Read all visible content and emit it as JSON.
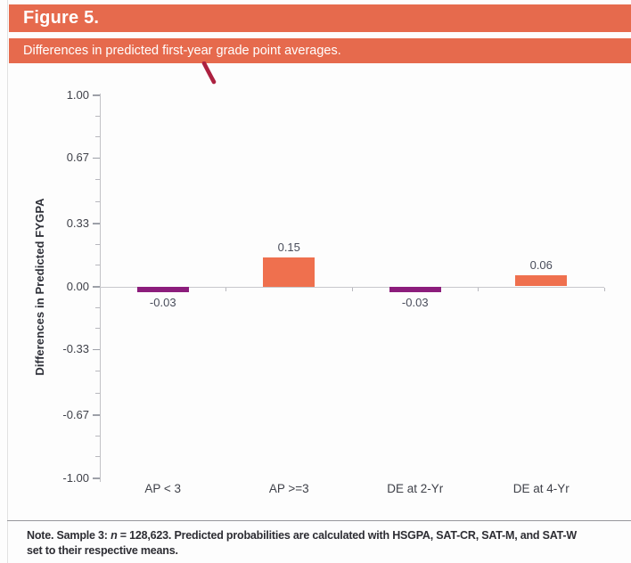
{
  "header": {
    "figure_label": "Figure 5.",
    "subtitle": "Differences in predicted first-year grade point averages."
  },
  "chart_data": {
    "type": "bar",
    "title": "Differences in predicted first-year grade point averages.",
    "categories": [
      "AP < 3",
      "AP >=3",
      "DE at 2-Yr",
      "DE at 4-Yr"
    ],
    "values": [
      -0.03,
      0.15,
      -0.03,
      0.06
    ],
    "value_labels": [
      "-0.03",
      "0.15",
      "-0.03",
      "0.06"
    ],
    "bar_colors": [
      "#8c1d7c",
      "#ef704e",
      "#8c1d7c",
      "#ef704e"
    ],
    "ylabel": "Differences in Predicted FYGPA",
    "xlabel": "",
    "ylim": [
      -1.0,
      1.0
    ],
    "yticks": [
      1.0,
      0.67,
      0.33,
      0.0,
      -0.33,
      -0.67,
      -1.0
    ],
    "ytick_labels": [
      "1.00",
      "0.67",
      "0.33",
      "0.00",
      "-0.33",
      "-0.67",
      "-1.00"
    ],
    "minor_ticks_per_interval": 2,
    "grid": false,
    "legend": "none"
  },
  "note": {
    "prefix": "Note. Sample 3: ",
    "n_italic": "n",
    "line1_rest": " = 128,623. Predicted probabilities are calculated with HSGPA, SAT-CR, SAT-M, and SAT-W",
    "line2": "set to their respective means."
  },
  "colors": {
    "header_bg": "#e66a4d",
    "bar_orange": "#ef704e",
    "bar_purple": "#8c1d7c",
    "annotation_red": "#ac2140",
    "axis_line": "#c8c8cc",
    "text_dark": "#3f4149"
  }
}
